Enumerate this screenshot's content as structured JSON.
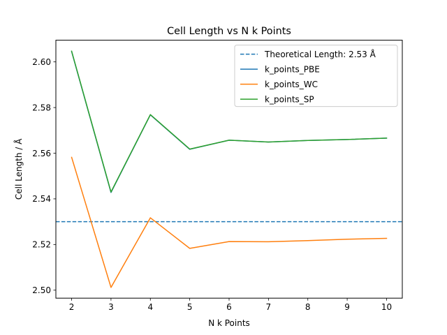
{
  "chart_data": {
    "type": "line",
    "title": "Cell Length vs N k Points",
    "xlabel": "N k Points",
    "ylabel": "Cell Length / Å",
    "xlim": [
      1.6,
      10.4
    ],
    "ylim": [
      2.4965,
      2.6095
    ],
    "x_ticks": [
      2,
      3,
      4,
      5,
      6,
      7,
      8,
      9,
      10
    ],
    "y_ticks": [
      2.5,
      2.52,
      2.54,
      2.56,
      2.58,
      2.6
    ],
    "y_tick_format_decimals": 2,
    "grid": false,
    "legend_position": "top-right",
    "reference_line": {
      "name": "Theoretical Length: 2.53 Å",
      "y": 2.53,
      "style": "dashed",
      "color": "#1f77b4"
    },
    "x": [
      2,
      3,
      4,
      5,
      6,
      7,
      8,
      9,
      10
    ],
    "series": [
      {
        "name": "k_points_PBE",
        "color": "#1f77b4",
        "values": [
          2.6045,
          2.5428,
          2.5768,
          2.5617,
          2.5657,
          2.5649,
          2.5656,
          2.566,
          2.5666
        ]
      },
      {
        "name": "k_points_WC",
        "color": "#ff7f0e",
        "values": [
          2.5582,
          2.5012,
          2.5317,
          2.5183,
          2.5213,
          2.5212,
          2.5217,
          2.5223,
          2.5227
        ]
      },
      {
        "name": "k_points_SP",
        "color": "#2ca02c",
        "values": [
          2.6047,
          2.543,
          2.5769,
          2.5618,
          2.5657,
          2.5649,
          2.5656,
          2.566,
          2.5666
        ]
      }
    ]
  }
}
